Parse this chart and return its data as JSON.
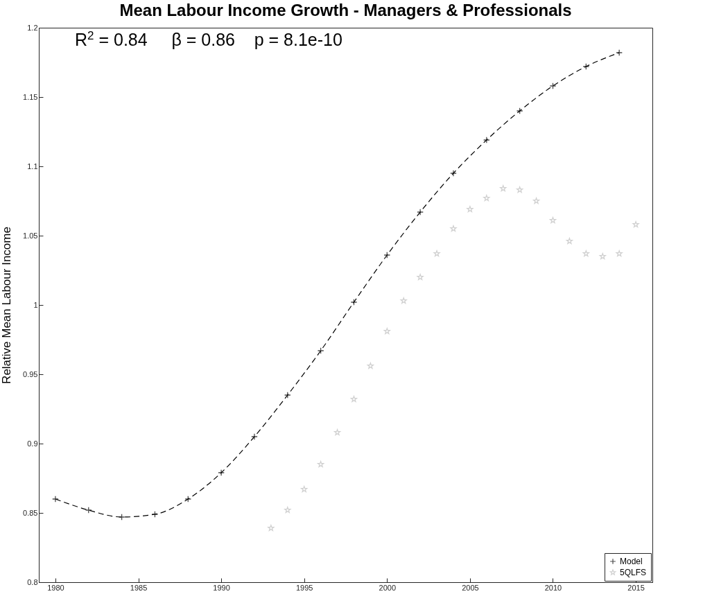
{
  "chart_data": {
    "type": "line",
    "title": "Mean Labour Income Growth - Managers & Professionals",
    "ylabel": "Relative Mean Labour Income",
    "annotations": [
      "R$^{2}$ = 0.84     β = 0.86    p = 8.1e-10"
    ],
    "xlim": [
      1979,
      2016
    ],
    "xticks": [
      1980,
      1985,
      1990,
      1995,
      2000,
      2005,
      2010,
      2015
    ],
    "ylim": [
      0.8,
      1.2
    ],
    "yticks": [
      0.8,
      0.85,
      0.9,
      0.95,
      1,
      1.05,
      1.1,
      1.15,
      1.2
    ],
    "grid": false,
    "legend": "bottom right",
    "series": [
      {
        "name": "Model",
        "type": "line",
        "line_style": "dashed",
        "marker": "cross",
        "color": "#000000",
        "x": [
          1980,
          1982,
          1984,
          1986,
          1988,
          1990,
          1992,
          1994,
          1996,
          1998,
          2000,
          2002,
          2004,
          2006,
          2008,
          2010,
          2012,
          2014
        ],
        "values": [
          0.86,
          0.852,
          0.847,
          0.849,
          0.86,
          0.879,
          0.905,
          0.935,
          0.967,
          1.002,
          1.036,
          1.067,
          1.095,
          1.119,
          1.14,
          1.158,
          1.172,
          1.182
        ]
      },
      {
        "name": "5QLFS",
        "type": "scatter",
        "marker": "star",
        "color": "#bdbdbd",
        "x": [
          1993,
          1994,
          1995,
          1996,
          1997,
          1998,
          1999,
          2000,
          2001,
          2002,
          2003,
          2004,
          2005,
          2006,
          2007,
          2008,
          2009,
          2010,
          2011,
          2012,
          2013,
          2014,
          2015
        ],
        "values": [
          0.839,
          0.852,
          0.867,
          0.885,
          0.908,
          0.932,
          0.956,
          0.981,
          1.003,
          1.02,
          1.037,
          1.055,
          1.069,
          1.077,
          1.084,
          1.083,
          1.075,
          1.061,
          1.046,
          1.037,
          1.035,
          1.037,
          1.058
        ]
      }
    ]
  }
}
